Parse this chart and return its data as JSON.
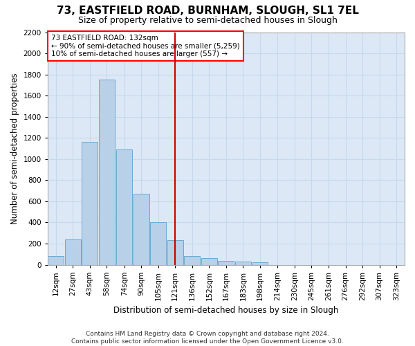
{
  "title_line1": "73, EASTFIELD ROAD, BURNHAM, SLOUGH, SL1 7EL",
  "title_line2": "Size of property relative to semi-detached houses in Slough",
  "xlabel": "Distribution of semi-detached houses by size in Slough",
  "ylabel": "Number of semi-detached properties",
  "footer_line1": "Contains HM Land Registry data © Crown copyright and database right 2024.",
  "footer_line2": "Contains public sector information licensed under the Open Government Licence v3.0.",
  "annotation_line1": "73 EASTFIELD ROAD: 132sqm",
  "annotation_line2": "← 90% of semi-detached houses are smaller (5,259)",
  "annotation_line3": "10% of semi-detached houses are larger (557) →",
  "categories": [
    "12sqm",
    "27sqm",
    "43sqm",
    "58sqm",
    "74sqm",
    "90sqm",
    "105sqm",
    "121sqm",
    "136sqm",
    "152sqm",
    "167sqm",
    "183sqm",
    "198sqm",
    "214sqm",
    "230sqm",
    "245sqm",
    "261sqm",
    "276sqm",
    "292sqm",
    "307sqm",
    "323sqm"
  ],
  "bar_centers": [
    19.5,
    35,
    50.5,
    66,
    82,
    97.5,
    113,
    128.5,
    144,
    159.5,
    175,
    190.5,
    206,
    222,
    237.5,
    253,
    268.5,
    284,
    299.5,
    315,
    330.5
  ],
  "bar_width": 14.5,
  "values": [
    80,
    240,
    1160,
    1750,
    1090,
    670,
    400,
    230,
    80,
    65,
    35,
    30,
    20,
    0,
    0,
    0,
    0,
    0,
    0,
    0,
    0
  ],
  "bar_color": "#b8d0e8",
  "bar_edge_color": "#6aaad4",
  "vline_x": 128.5,
  "vline_color": "#cc0000",
  "ylim": [
    0,
    2200
  ],
  "yticks": [
    0,
    200,
    400,
    600,
    800,
    1000,
    1200,
    1400,
    1600,
    1800,
    2000,
    2200
  ],
  "grid_color": "#c8d8ec",
  "background_color": "#dce8f5",
  "figure_color": "#ffffff",
  "title_fontsize": 11,
  "subtitle_fontsize": 9,
  "axis_label_fontsize": 8.5,
  "tick_fontsize": 7.5,
  "annotation_fontsize": 7.5,
  "footer_fontsize": 6.5,
  "xlim_left": 12,
  "xlim_right": 338
}
